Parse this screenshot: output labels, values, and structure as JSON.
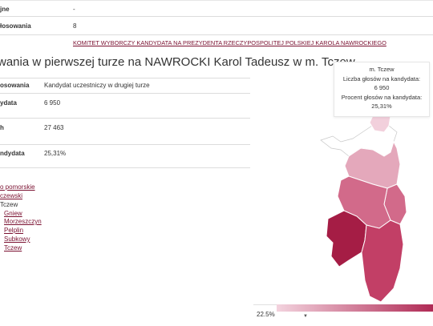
{
  "top_table": {
    "row1_label": "jne",
    "row1_value": "-",
    "row2_label": "łosowania",
    "row2_value": "8"
  },
  "committee_link": "KOMITET WYBORCZY KANDYDATA NA PREZYDENTA RZECZYPOSPOLITEJ POLSKIEJ KAROLA NAWROCKIEGO",
  "heading": "wania w pierwszej turze na NAWROCKI Karol Tadeusz w m. Tczew",
  "results_table": {
    "rows": [
      {
        "label": "osowania",
        "value": "Kandydat uczestniczy w drugiej turze"
      },
      {
        "label": "ydata",
        "value": "6 950"
      },
      {
        "label": "h",
        "value": "27 463"
      },
      {
        "label": "ndydata",
        "value": "25,31%"
      }
    ]
  },
  "breadcrumbs": [
    {
      "text": "o pomorskie",
      "link": true
    },
    {
      "text": "czewski",
      "link": true
    },
    {
      "text": "Tczew",
      "link": false
    },
    {
      "text": "Gniew",
      "link": true
    },
    {
      "text": "Morzeszczyn",
      "link": true
    },
    {
      "text": "Pelplin",
      "link": true
    },
    {
      "text": "Subkowy",
      "link": true
    },
    {
      "text": "Tczew",
      "link": true
    }
  ],
  "tooltip": {
    "title": "m. Tczew",
    "votes_label": "Liczba głosów na kandydata:",
    "votes_value": "6 950",
    "pct_label": "Procent głosów na kandydata:",
    "pct_value": "25,31%"
  },
  "legend": {
    "min_label": "22.5%",
    "color_low": "#f3d3de",
    "color_high": "#b02a55"
  },
  "map_colors": {
    "selected": "#a51d45",
    "dark": "#c23f66",
    "medium": "#d26a8a",
    "light": "#e4a8bb",
    "pale": "#f2d0dc"
  }
}
